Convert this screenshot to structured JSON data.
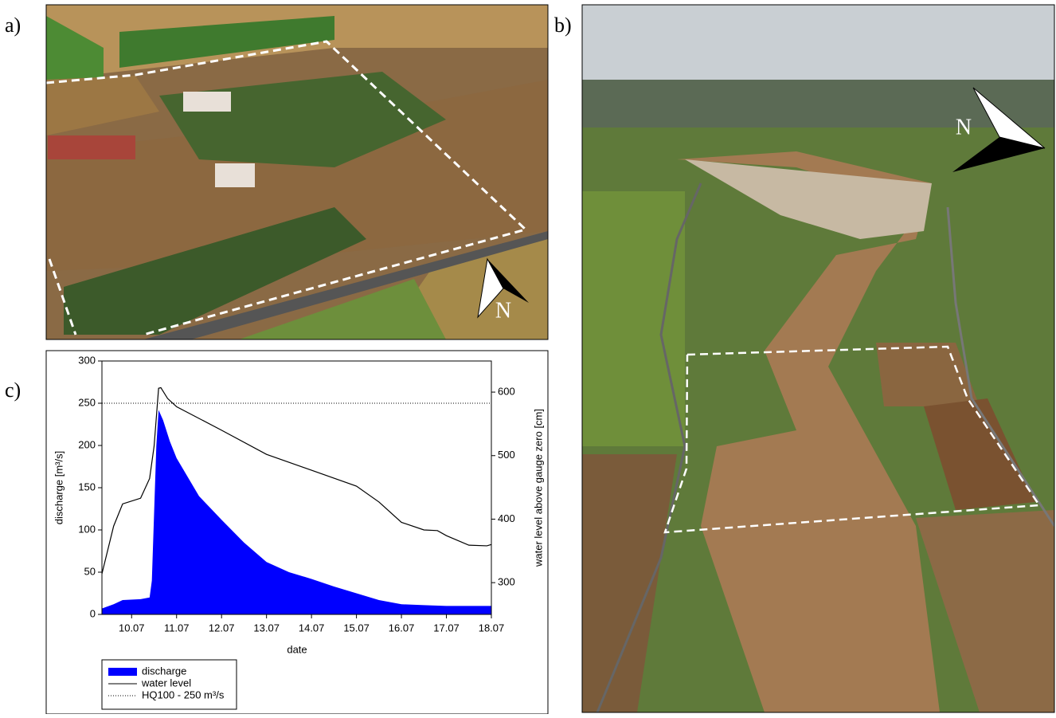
{
  "panels": {
    "a": "a)",
    "b": "b)",
    "c": "c)"
  },
  "photo_a": {
    "north_label": "N"
  },
  "photo_b": {
    "north_label": "N"
  },
  "chart_data": {
    "type": "area-line",
    "x_label": "date",
    "y_label": "discharge [m³/s]",
    "y2_label": "water level above gauge zero [cm]",
    "xlim": [
      9.34,
      18
    ],
    "xticks": [
      {
        "value": 10,
        "label": "10.07"
      },
      {
        "value": 11,
        "label": "11.07"
      },
      {
        "value": 12,
        "label": "12.07"
      },
      {
        "value": 13,
        "label": "13.07"
      },
      {
        "value": 14,
        "label": "14.07"
      },
      {
        "value": 15,
        "label": "15.07"
      },
      {
        "value": 16,
        "label": "16.07"
      },
      {
        "value": 17,
        "label": "17.07"
      },
      {
        "value": 18,
        "label": "18.07"
      }
    ],
    "ylim": [
      0,
      300
    ],
    "yticks": [
      0,
      50,
      100,
      150,
      200,
      250,
      300
    ],
    "y2lim": [
      250,
      649
    ],
    "y2ticks": [
      300,
      400,
      500,
      600
    ],
    "reference_line": {
      "value": 250,
      "label": "HQ100 - 250 m³/s",
      "color": "#000000"
    },
    "series": [
      {
        "name": "discharge",
        "color": "#0000ff",
        "x": [
          9.34,
          9.6,
          9.8,
          10.2,
          10.4,
          10.45,
          10.5,
          10.55,
          10.6,
          10.7,
          10.85,
          11.0,
          11.5,
          12.0,
          12.5,
          13.0,
          13.5,
          14.0,
          14.5,
          15.0,
          15.5,
          16.0,
          16.5,
          17.0,
          17.5,
          18.0
        ],
        "values": [
          7,
          12,
          17,
          18,
          20,
          40,
          120,
          200,
          242,
          230,
          205,
          185,
          140,
          112,
          85,
          62,
          50,
          42,
          33,
          25,
          17,
          12,
          11,
          10,
          10,
          10
        ]
      },
      {
        "name": "water level",
        "color": "#000000",
        "axis": "y2",
        "x": [
          9.34,
          9.6,
          9.8,
          10.2,
          10.4,
          10.5,
          10.6,
          10.65,
          10.8,
          11.0,
          12.0,
          13.0,
          14.0,
          15.0,
          15.5,
          16.0,
          16.5,
          16.8,
          17.0,
          17.5,
          17.9,
          18.0
        ],
        "values": [
          314,
          389,
          424,
          433,
          464,
          515,
          606,
          607,
          590,
          577,
          540,
          502,
          477,
          452,
          427,
          395,
          383,
          382,
          374,
          359,
          358,
          360
        ]
      }
    ]
  }
}
